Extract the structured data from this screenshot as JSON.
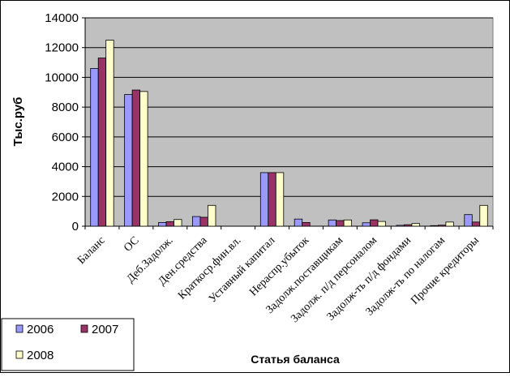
{
  "colors": {
    "plot_bg": "#c0c0c0",
    "frame": "#000000",
    "series": [
      "#9999ff",
      "#993366",
      "#ffffcc"
    ]
  },
  "chart_data": {
    "type": "bar",
    "xlabel": "Статья баланса",
    "ylabel": "Тыс.руб",
    "ylim": [
      0,
      14000
    ],
    "yticks": [
      0,
      2000,
      4000,
      6000,
      8000,
      10000,
      12000,
      14000
    ],
    "grid": true,
    "legend_position": "bottom-left",
    "categories": [
      "Баланс",
      "ОС",
      "Деб.Задолж.",
      "Ден.средства",
      "Краткоср.фин.вл.",
      "Уставный капитал",
      "Нераспр.убыток",
      "Задолж.поставщикам",
      "Задолж. п/д персоналом",
      "Задолж-ть п/д фондами",
      "Задолж-ть по налогам",
      "Прочие кредиторы"
    ],
    "series": [
      {
        "name": "2006",
        "values": [
          10600,
          8850,
          250,
          650,
          0,
          3600,
          480,
          420,
          230,
          60,
          40,
          780
        ]
      },
      {
        "name": "2007",
        "values": [
          11300,
          9150,
          300,
          600,
          0,
          3600,
          250,
          380,
          430,
          100,
          70,
          280
        ]
      },
      {
        "name": "2008",
        "values": [
          12500,
          9050,
          450,
          1400,
          0,
          3600,
          0,
          420,
          320,
          180,
          280,
          1400
        ]
      }
    ]
  }
}
